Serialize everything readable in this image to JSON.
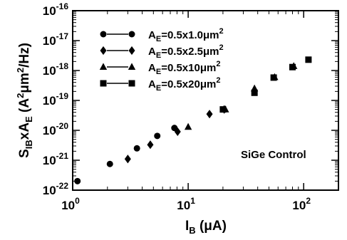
{
  "chart_data": {
    "type": "scatter",
    "x_scale": "log",
    "y_scale": "log",
    "xlim": [
      1,
      200
    ],
    "ylim": [
      1e-22,
      1e-16
    ],
    "x_ticks": [
      {
        "value": 1,
        "base": "10",
        "exp": "0"
      },
      {
        "value": 10,
        "base": "10",
        "exp": "1"
      },
      {
        "value": 100,
        "base": "10",
        "exp": "2"
      }
    ],
    "y_ticks": [
      {
        "value": 1e-16,
        "base": "10",
        "exp": "-16"
      },
      {
        "value": 1e-17,
        "base": "10",
        "exp": "-17"
      },
      {
        "value": 1e-18,
        "base": "10",
        "exp": "-18"
      },
      {
        "value": 1e-19,
        "base": "10",
        "exp": "-19"
      },
      {
        "value": 1e-20,
        "base": "10",
        "exp": "-20"
      },
      {
        "value": 1e-21,
        "base": "10",
        "exp": "-21"
      },
      {
        "value": 1e-22,
        "base": "10",
        "exp": "-22"
      }
    ],
    "xlabel": {
      "main": "I",
      "sub": "B",
      "unit": " (μA)"
    },
    "ylabel": {
      "main1": "S",
      "sub1": "IB",
      "main2": "xA",
      "sub2": "E",
      "unit_pre": " (A",
      "unit_sup1": "2",
      "unit_mid": "μm",
      "unit_sup2": "2",
      "unit_post": "/Hz)"
    },
    "legend_position": "top-left",
    "annotation": "SiGe Control",
    "series": [
      {
        "marker": "circle",
        "label": {
          "a": "A",
          "sub": "E",
          "rest": "=0.5x1.0μm",
          "sup": "2"
        },
        "points": [
          [
            1.1,
            2e-22
          ],
          [
            2.1,
            7.5e-22
          ],
          [
            3.6,
            2.5e-21
          ],
          [
            5.4,
            6.5e-21
          ],
          [
            7.6,
            1.2e-20
          ]
        ]
      },
      {
        "marker": "diamond",
        "label": {
          "a": "A",
          "sub": "E",
          "rest": "=0.5x2.5μm",
          "sup": "2"
        },
        "points": [
          [
            3.0,
            1.1e-21
          ],
          [
            4.7,
            3.3e-21
          ],
          [
            8.1,
            9e-21
          ],
          [
            15.3,
            3.5e-20
          ],
          [
            20.5,
            5e-20
          ]
        ]
      },
      {
        "marker": "triangle",
        "label": {
          "a": "A",
          "sub": "E",
          "rest": "=0.5x10μm",
          "sup": "2"
        },
        "points": [
          [
            10.0,
            1.3e-20
          ],
          [
            21.0,
            5e-20
          ],
          [
            37.5,
            2.5e-19
          ],
          [
            56.0,
            6e-19
          ],
          [
            82.0,
            1.4e-18
          ]
        ]
      },
      {
        "marker": "square",
        "label": {
          "a": "A",
          "sub": "E",
          "rest": "=0.5x20μm",
          "sup": "2"
        },
        "points": [
          [
            20.0,
            5e-20
          ],
          [
            37.5,
            1.8e-19
          ],
          [
            55.0,
            5.8e-19
          ],
          [
            80.0,
            1.3e-18
          ],
          [
            110.0,
            2.3e-18
          ]
        ]
      }
    ]
  }
}
